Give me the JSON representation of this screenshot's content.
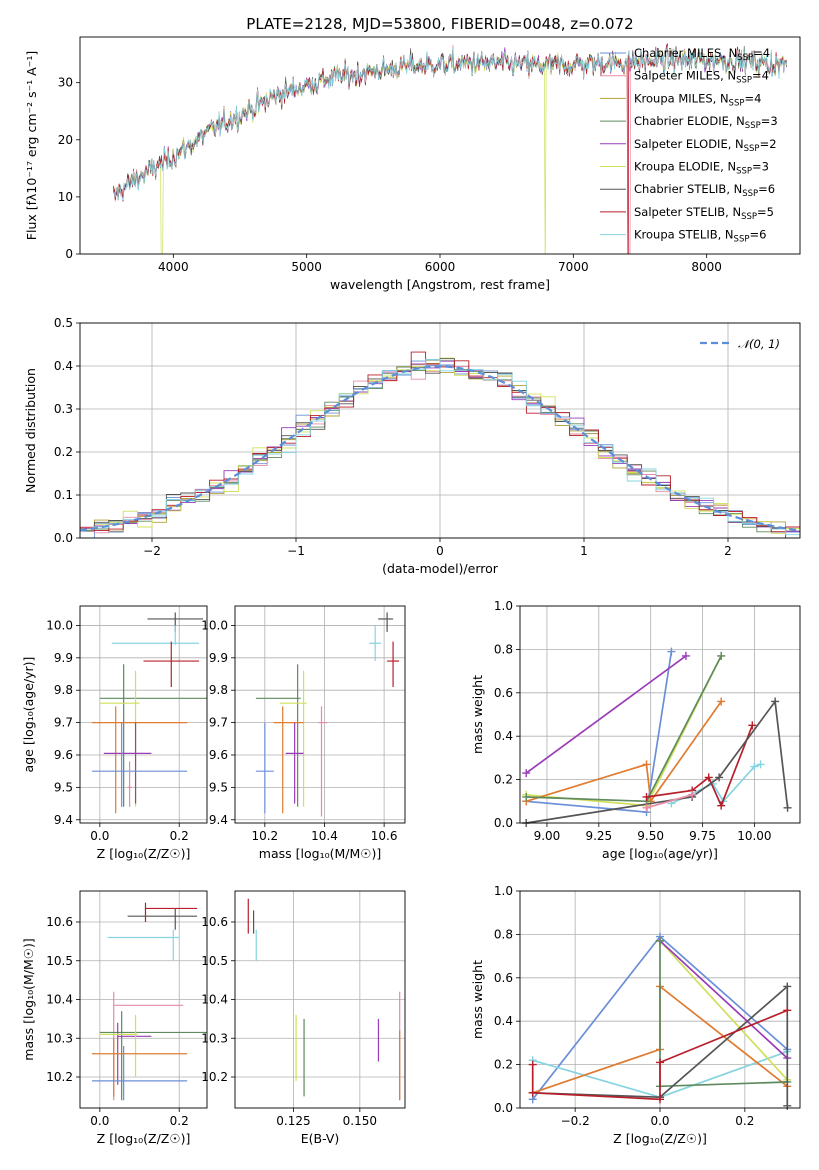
{
  "figure_title": "PLATE=2128, MJD=53800, FIBERID=0048, z=0.072",
  "colors": {
    "Chabrier MILES": "#6a8fd8",
    "Salpeter MILES": "#e88aa8",
    "Kroupa MILES": "#b4a23a",
    "Chabrier ELODIE": "#5e8a5e",
    "Salpeter ELODIE": "#9a3cb8",
    "Kroupa ELODIE": "#cfe05a",
    "Chabrier STELIB": "#555555",
    "Salpeter STELIB": "#b81f2a",
    "Kroupa STELIB": "#86d4e0",
    "orange": "#e07b2f",
    "model": "#5b8fd8"
  },
  "chart_data": [
    {
      "id": "spectrum",
      "type": "line",
      "title": "PLATE=2128, MJD=53800, FIBERID=0048, z=0.072",
      "xlabel": "wavelength [Angstrom, rest frame]",
      "ylabel": "Flux [fλ10⁻¹⁷ erg cm⁻² s⁻¹ A⁻¹]",
      "xlim": [
        3300,
        8700
      ],
      "ylim": [
        0,
        38
      ],
      "xticks": [
        "4000",
        "5000",
        "6000",
        "7000",
        "8000"
      ],
      "xtick_values": [
        4000,
        5000,
        6000,
        7000,
        8000
      ],
      "yticks": [
        "0",
        "10",
        "20",
        "30"
      ],
      "ytick_values": [
        0,
        10,
        20,
        30
      ],
      "x_range": [
        3550,
        8600
      ],
      "continuum": {
        "x": [
          3550,
          3700,
          4000,
          4300,
          4800,
          5200,
          5800,
          6300,
          6800,
          7300,
          7800,
          8200,
          8600
        ],
        "y": [
          10,
          13,
          17,
          22,
          28,
          31,
          33,
          33.5,
          33,
          33.5,
          34,
          34,
          33
        ]
      },
      "legend": [
        {
          "label": "Chabrier MILES, N",
          "sub": "SSP",
          "suffix": "=4"
        },
        {
          "label": "Salpeter MILES, N",
          "sub": "SSP",
          "suffix": "=4"
        },
        {
          "label": "Kroupa MILES, N",
          "sub": "SSP",
          "suffix": "=4"
        },
        {
          "label": "Chabrier ELODIE, N",
          "sub": "SSP",
          "suffix": "=3"
        },
        {
          "label": "Salpeter ELODIE, N",
          "sub": "SSP",
          "suffix": "=2"
        },
        {
          "label": "Kroupa ELODIE, N",
          "sub": "SSP",
          "suffix": "=3"
        },
        {
          "label": "Chabrier STELIB, N",
          "sub": "SSP",
          "suffix": "=6"
        },
        {
          "label": "Salpeter STELIB, N",
          "sub": "SSP",
          "suffix": "=5"
        },
        {
          "label": "Kroupa STELIB, N",
          "sub": "SSP",
          "suffix": "=6"
        }
      ],
      "legend_placement": "upper-right"
    },
    {
      "id": "residuals",
      "type": "histogram",
      "xlabel": "(data-model)/error",
      "ylabel": "Normed distribution",
      "xlim": [
        -2.5,
        2.5
      ],
      "ylim": [
        0,
        0.5
      ],
      "xticks": [
        "−2",
        "−1",
        "0",
        "1",
        "2"
      ],
      "xtick_values": [
        -2,
        -1,
        0,
        1,
        2
      ],
      "yticks": [
        "0.0",
        "0.1",
        "0.2",
        "0.3",
        "0.4",
        "0.5"
      ],
      "ytick_values": [
        0,
        0.1,
        0.2,
        0.3,
        0.4,
        0.5
      ],
      "bin_width": 0.1,
      "legend": "𝒩(0, 1)",
      "legend_placement": "upper-right",
      "grid": true
    },
    {
      "id": "age_vs_Z",
      "type": "errorbar",
      "xlabel": "Z [log₁₀(Z/Z☉)]",
      "ylabel": "age  [log₁₀(age/yr)]",
      "xlim": [
        -0.05,
        0.27
      ],
      "ylim": [
        9.39,
        10.06
      ],
      "xticks": [
        "0.0",
        "0.2"
      ],
      "xtick_values": [
        0.0,
        0.2
      ],
      "yticks": [
        "9.4",
        "9.5",
        "9.6",
        "9.7",
        "9.8",
        "9.9",
        "10.0"
      ],
      "ytick_values": [
        9.4,
        9.5,
        9.6,
        9.7,
        9.8,
        9.9,
        10.0
      ],
      "points": [
        {
          "s": "Chabrier STELIB",
          "x": 0.19,
          "xlo": 0.12,
          "xhi": 0.26,
          "y": 10.02,
          "ylo": 9.98,
          "yhi": 10.04
        },
        {
          "s": "Kroupa STELIB",
          "x": 0.19,
          "xlo": 0.03,
          "xhi": 0.25,
          "y": 9.945,
          "ylo": 9.94,
          "yhi": 10.0
        },
        {
          "s": "Salpeter STELIB",
          "x": 0.18,
          "xlo": 0.11,
          "xhi": 0.25,
          "y": 9.89,
          "ylo": 9.81,
          "yhi": 9.95
        },
        {
          "s": "Chabrier ELODIE",
          "x": 0.06,
          "xlo": 0.0,
          "xhi": 0.27,
          "y": 9.775,
          "ylo": 9.44,
          "yhi": 9.88
        },
        {
          "s": "Kroupa ELODIE",
          "x": 0.09,
          "xlo": 0.0,
          "xhi": 0.1,
          "y": 9.76,
          "ylo": 9.44,
          "yhi": 9.86
        },
        {
          "s": "orange",
          "x": 0.04,
          "xlo": -0.02,
          "xhi": 0.22,
          "y": 9.7,
          "ylo": 9.42,
          "yhi": 9.75
        },
        {
          "s": "Salpeter ELODIE",
          "x": 0.09,
          "xlo": 0.01,
          "xhi": 0.13,
          "y": 9.605,
          "ylo": 9.45,
          "yhi": 9.7
        },
        {
          "s": "Chabrier MILES",
          "x": 0.055,
          "xlo": -0.02,
          "xhi": 0.22,
          "y": 9.55,
          "ylo": 9.44,
          "yhi": 9.7
        },
        {
          "s": "Salpeter MILES",
          "x": 0.075,
          "xlo": 0.07,
          "xhi": 0.08,
          "y": 9.5,
          "ylo": 9.44,
          "yhi": 9.58
        }
      ]
    },
    {
      "id": "age_vs_mass",
      "type": "errorbar",
      "xlabel": "mass [log₁₀(M/M☉)]",
      "ylabel": "",
      "xlim": [
        10.1,
        10.67
      ],
      "ylim": [
        9.39,
        10.06
      ],
      "xticks": [
        "10.2",
        "10.4",
        "10.6"
      ],
      "xtick_values": [
        10.2,
        10.4,
        10.6
      ],
      "yticks": [
        "9.4",
        "9.5",
        "9.6",
        "9.7",
        "9.8",
        "9.9",
        "10.0"
      ],
      "ytick_values": [
        9.4,
        9.5,
        9.6,
        9.7,
        9.8,
        9.9,
        10.0
      ],
      "points": [
        {
          "s": "Chabrier STELIB",
          "x": 10.61,
          "xlo": 10.58,
          "xhi": 10.63,
          "y": 10.02,
          "ylo": 9.98,
          "yhi": 10.04
        },
        {
          "s": "Kroupa STELIB",
          "x": 10.57,
          "xlo": 10.55,
          "xhi": 10.59,
          "y": 9.945,
          "ylo": 9.89,
          "yhi": 10.0
        },
        {
          "s": "Salpeter STELIB",
          "x": 10.63,
          "xlo": 10.61,
          "xhi": 10.65,
          "y": 9.89,
          "ylo": 9.81,
          "yhi": 9.95
        },
        {
          "s": "Chabrier ELODIE",
          "x": 10.31,
          "xlo": 10.17,
          "xhi": 10.32,
          "y": 9.775,
          "ylo": 9.44,
          "yhi": 9.88
        },
        {
          "s": "Kroupa ELODIE",
          "x": 10.33,
          "xlo": 10.25,
          "xhi": 10.34,
          "y": 9.76,
          "ylo": 9.44,
          "yhi": 9.86
        },
        {
          "s": "orange",
          "x": 10.26,
          "xlo": 10.23,
          "xhi": 10.33,
          "y": 9.7,
          "ylo": 9.42,
          "yhi": 9.75
        },
        {
          "s": "Salpeter MILES",
          "x": 10.39,
          "xlo": 10.38,
          "xhi": 10.41,
          "y": 9.7,
          "ylo": 9.41,
          "yhi": 9.75
        },
        {
          "s": "Salpeter ELODIE",
          "x": 10.3,
          "xlo": 10.27,
          "xhi": 10.33,
          "y": 9.605,
          "ylo": 9.45,
          "yhi": 9.7
        },
        {
          "s": "Chabrier MILES",
          "x": 10.2,
          "xlo": 10.17,
          "xhi": 10.23,
          "y": 9.55,
          "ylo": 9.42,
          "yhi": 9.7
        }
      ]
    },
    {
      "id": "weight_vs_age",
      "type": "line",
      "xlabel": "age  [log₁₀(age/yr)]",
      "ylabel": "mass weight",
      "xlim": [
        8.87,
        10.22
      ],
      "ylim": [
        0,
        1.0
      ],
      "xticks": [
        "9.00",
        "9.25",
        "9.50",
        "9.75",
        "10.00"
      ],
      "xtick_values": [
        9.0,
        9.25,
        9.5,
        9.75,
        10.0
      ],
      "yticks": [
        "0.0",
        "0.2",
        "0.4",
        "0.6",
        "0.8",
        "1.0"
      ],
      "ytick_values": [
        0,
        0.2,
        0.4,
        0.6,
        0.8,
        1.0
      ],
      "series": [
        {
          "s": "Kroupa STELIB",
          "x": [
            9.6,
            9.8,
            9.85,
            10.0,
            10.03
          ],
          "y": [
            0.09,
            0.18,
            0.1,
            0.26,
            0.27
          ]
        },
        {
          "s": "Chabrier MILES",
          "x": [
            8.9,
            9.48,
            9.6
          ],
          "y": [
            0.1,
            0.05,
            0.79
          ]
        },
        {
          "s": "Salpeter ELODIE",
          "x": [
            8.9,
            9.67
          ],
          "y": [
            0.23,
            0.77
          ]
        },
        {
          "s": "Kroupa ELODIE",
          "x": [
            8.9,
            9.48,
            9.84
          ],
          "y": [
            0.13,
            0.08,
            0.77
          ]
        },
        {
          "s": "orange",
          "x": [
            8.9,
            9.48,
            9.5,
            9.84
          ],
          "y": [
            0.1,
            0.27,
            0.1,
            0.56
          ]
        },
        {
          "s": "Chabrier ELODIE",
          "x": [
            8.9,
            9.48,
            9.84
          ],
          "y": [
            0.12,
            0.1,
            0.77
          ]
        },
        {
          "s": "Salpeter STELIB",
          "x": [
            9.48,
            9.7,
            9.78,
            9.84,
            9.99
          ],
          "y": [
            0.12,
            0.15,
            0.21,
            0.08,
            0.45
          ]
        },
        {
          "s": "Chabrier STELIB",
          "x": [
            8.9,
            9.7,
            9.83,
            10.1,
            10.16
          ],
          "y": [
            0.0,
            0.12,
            0.21,
            0.56,
            0.07
          ]
        },
        {
          "s": "Salpeter MILES",
          "x": [
            9.48,
            9.7
          ],
          "y": [
            0.07,
            0.13
          ]
        }
      ]
    },
    {
      "id": "mass_vs_Z",
      "type": "errorbar",
      "xlabel": "Z [log₁₀(Z/Z☉)]",
      "ylabel": "mass [log₁₀(M/M☉)]",
      "xlim": [
        -0.05,
        0.27
      ],
      "ylim": [
        10.12,
        10.68
      ],
      "xticks": [
        "0.0",
        "0.2"
      ],
      "xtick_values": [
        0.0,
        0.2
      ],
      "yticks": [
        "10.2",
        "10.3",
        "10.4",
        "10.5",
        "10.6"
      ],
      "ytick_values": [
        10.2,
        10.3,
        10.4,
        10.5,
        10.6
      ],
      "points": [
        {
          "s": "Salpeter STELIB",
          "x": 0.115,
          "xlo": 0.115,
          "xhi": 0.245,
          "y": 10.635,
          "ylo": 10.6,
          "yhi": 10.65
        },
        {
          "s": "Chabrier STELIB",
          "x": 0.19,
          "xlo": 0.07,
          "xhi": 0.245,
          "y": 10.615,
          "ylo": 10.58,
          "yhi": 10.635
        },
        {
          "s": "Kroupa STELIB",
          "x": 0.185,
          "xlo": 0.02,
          "xhi": 0.2,
          "y": 10.56,
          "ylo": 10.5,
          "yhi": 10.58
        },
        {
          "s": "Salpeter MILES",
          "x": 0.035,
          "xlo": 0.035,
          "xhi": 0.21,
          "y": 10.385,
          "ylo": 10.14,
          "yhi": 10.42
        },
        {
          "s": "Chabrier ELODIE",
          "x": 0.055,
          "xlo": 0.0,
          "xhi": 0.27,
          "y": 10.315,
          "ylo": 10.14,
          "yhi": 10.37
        },
        {
          "s": "Salpeter ELODIE",
          "x": 0.045,
          "xlo": 0.045,
          "xhi": 0.13,
          "y": 10.305,
          "ylo": 10.18,
          "yhi": 10.34
        },
        {
          "s": "Kroupa ELODIE",
          "x": 0.09,
          "xlo": 0.0,
          "xhi": 0.095,
          "y": 10.31,
          "ylo": 10.2,
          "yhi": 10.36
        },
        {
          "s": "orange",
          "x": 0.035,
          "xlo": -0.02,
          "xhi": 0.22,
          "y": 10.26,
          "ylo": 10.15,
          "yhi": 10.3
        },
        {
          "s": "Chabrier MILES",
          "x": 0.06,
          "xlo": -0.02,
          "xhi": 0.22,
          "y": 10.19,
          "ylo": 10.14,
          "yhi": 10.28
        }
      ]
    },
    {
      "id": "mass_vs_ebv",
      "type": "errorbar",
      "xlabel": "E(B-V)",
      "ylabel": "",
      "xlim": [
        0.103,
        0.167
      ],
      "ylim": [
        10.12,
        10.68
      ],
      "xticks": [
        "0.125",
        "0.150"
      ],
      "xtick_values": [
        0.125,
        0.15
      ],
      "yticks": [
        "10.2",
        "10.3",
        "10.4",
        "10.5",
        "10.6"
      ],
      "ytick_values": [
        10.2,
        10.3,
        10.4,
        10.5,
        10.6
      ],
      "points": [
        {
          "s": "Salpeter STELIB",
          "x": 0.108,
          "y": 10.615,
          "ylo": 10.57,
          "yhi": 10.66
        },
        {
          "s": "Chabrier STELIB",
          "x": 0.11,
          "y": 10.6,
          "ylo": 10.57,
          "yhi": 10.63
        },
        {
          "s": "Kroupa STELIB",
          "x": 0.111,
          "y": 10.56,
          "ylo": 10.5,
          "yhi": 10.58
        },
        {
          "s": "Kroupa ELODIE",
          "x": 0.126,
          "y": 10.28,
          "ylo": 10.19,
          "yhi": 10.36
        },
        {
          "s": "Chabrier ELODIE",
          "x": 0.129,
          "y": 10.28,
          "ylo": 10.15,
          "yhi": 10.35
        },
        {
          "s": "Salpeter ELODIE",
          "x": 0.157,
          "y": 10.29,
          "ylo": 10.24,
          "yhi": 10.35
        },
        {
          "s": "Salpeter MILES",
          "x": 0.165,
          "y": 10.36,
          "ylo": 10.14,
          "yhi": 10.42
        },
        {
          "s": "orange",
          "x": 0.165,
          "y": 10.25,
          "ylo": 10.14,
          "yhi": 10.32
        }
      ]
    },
    {
      "id": "weight_vs_Z",
      "type": "line",
      "xlabel": "Z [log₁₀(Z/Z☉)]",
      "ylabel": "mass weight",
      "xlim": [
        -0.33,
        0.33
      ],
      "ylim": [
        0,
        1.0
      ],
      "xticks": [
        "−0.2",
        "0.0",
        "0.2"
      ],
      "xtick_values": [
        -0.2,
        0.0,
        0.2
      ],
      "yticks": [
        "0.0",
        "0.2",
        "0.4",
        "0.6",
        "0.8",
        "1.0"
      ],
      "ytick_values": [
        0,
        0.2,
        0.4,
        0.6,
        0.8,
        1.0
      ],
      "series": [
        {
          "s": "Chabrier MILES",
          "x": [
            -0.3,
            0.0,
            0.3
          ],
          "y": [
            0.04,
            0.79,
            0.27
          ]
        },
        {
          "s": "Kroupa STELIB",
          "x": [
            -0.3,
            0.0,
            0.3
          ],
          "y": [
            0.22,
            0.05,
            0.26
          ]
        },
        {
          "s": "orange",
          "x": [
            -0.3,
            0.0,
            0.0,
            0.3
          ],
          "y": [
            0.07,
            0.27,
            0.56,
            0.1
          ]
        },
        {
          "s": "Kroupa ELODIE",
          "x": [
            0.0,
            0.3
          ],
          "y": [
            0.77,
            0.13
          ]
        },
        {
          "s": "Salpeter ELODIE",
          "x": [
            0.0,
            0.3
          ],
          "y": [
            0.77,
            0.23
          ]
        },
        {
          "s": "Chabrier ELODIE",
          "x": [
            0.0,
            0.0,
            0.3
          ],
          "y": [
            0.77,
            0.1,
            0.12
          ]
        },
        {
          "s": "Chabrier STELIB",
          "x": [
            -0.3,
            0.0,
            0.3,
            0.3
          ],
          "y": [
            0.07,
            0.05,
            0.56,
            0.01
          ]
        },
        {
          "s": "Salpeter STELIB",
          "x": [
            -0.3,
            -0.3,
            0.0,
            0.0,
            0.3
          ],
          "y": [
            0.2,
            0.07,
            0.04,
            0.21,
            0.45
          ]
        }
      ]
    }
  ]
}
